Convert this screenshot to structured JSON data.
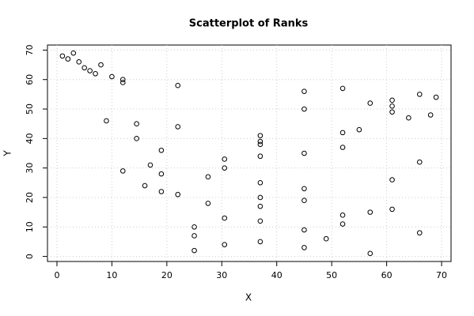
{
  "chart_data": {
    "type": "scatter",
    "title": "Scatterplot of Ranks",
    "x_label": "X",
    "y_label": "Y",
    "x": [
      1,
      2,
      3,
      4,
      5,
      6,
      7,
      8,
      10,
      12,
      12,
      22,
      9,
      14.5,
      14.5,
      22,
      19,
      12,
      17,
      19,
      16,
      19,
      22,
      27.5,
      27.5,
      25,
      25,
      25,
      30.5,
      30.5,
      30.5,
      30.5,
      37,
      37,
      37,
      37,
      37,
      37,
      37,
      37,
      37,
      45,
      45,
      45,
      45,
      45,
      45,
      45,
      49,
      52,
      52,
      52,
      52,
      52,
      55,
      57,
      57,
      57,
      61,
      61,
      61,
      61,
      61,
      64,
      66,
      66,
      66,
      68,
      69
    ],
    "y": [
      68,
      67,
      69,
      66,
      64,
      63,
      62,
      65,
      61,
      60,
      59,
      58,
      46,
      45,
      40,
      44,
      36,
      29,
      31,
      28,
      24,
      22,
      21,
      27,
      18,
      10,
      7,
      2,
      33,
      30,
      13,
      4,
      41,
      39,
      38,
      34,
      25,
      20,
      17,
      12,
      5,
      56,
      50,
      35,
      23,
      19,
      9,
      3,
      6,
      57,
      42,
      37,
      14,
      11,
      43,
      52,
      15,
      1,
      53,
      51,
      49,
      26,
      16,
      47,
      55,
      32,
      8,
      48,
      54
    ],
    "xlim": [
      -1.72,
      71.72
    ],
    "ylim": [
      -1.72,
      71.72
    ],
    "xticks": [
      0,
      10,
      20,
      30,
      40,
      50,
      60,
      70
    ],
    "yticks": [
      0,
      10,
      20,
      30,
      40,
      50,
      60,
      70
    ],
    "grid": true,
    "color": "#000000"
  }
}
